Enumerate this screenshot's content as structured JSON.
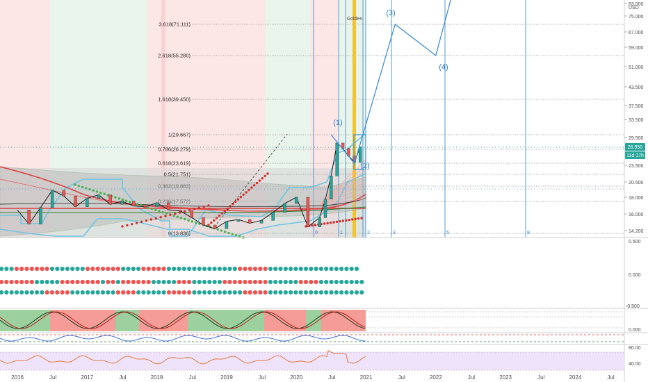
{
  "chart_data": {
    "type": "line",
    "series_name": "",
    "axis_unit": "USD",
    "current_price": {
      "value": 26.95,
      "label": "26.950",
      "countdown": "11d 17h",
      "color": "#26a69a"
    },
    "price_axis_ticks": [
      "83.000",
      "75.000",
      "67.000",
      "59.000",
      "51.000",
      "43.500",
      "37.500",
      "33.500",
      "29.500",
      "23.500",
      "20.500",
      "18.000",
      "16.000",
      "14.200"
    ],
    "x_ticks": [
      "2016",
      "Jul",
      "2017",
      "Jul",
      "2018",
      "Jul",
      "2019",
      "Jul",
      "2020",
      "Jul",
      "2021",
      "Jul",
      "2022",
      "Jul",
      "2023",
      "Jul",
      "2024",
      "Jul"
    ],
    "fib_levels": [
      {
        "ratio": "0",
        "label": "0(13.836)",
        "value": 13.836
      },
      {
        "ratio": "0.236",
        "label": "0.236(17.572)",
        "value": 17.572
      },
      {
        "ratio": "0.382",
        "label": "0.382(19.883)",
        "value": 19.883
      },
      {
        "ratio": "0.5",
        "label": "0.5(21.751)",
        "value": 21.751
      },
      {
        "ratio": "0.618",
        "label": "0.618(23.619)",
        "value": 23.619
      },
      {
        "ratio": "0.786",
        "label": "0.786(26.279)",
        "value": 26.279
      },
      {
        "ratio": "1",
        "label": "1(29.667)",
        "value": 29.667
      },
      {
        "ratio": "1.618",
        "label": "1.618(39.450)",
        "value": 39.45
      },
      {
        "ratio": "2.618",
        "label": "2.618(55.280)",
        "value": 55.28
      },
      {
        "ratio": "3.618",
        "label": "3.618(71.111)",
        "value": 71.111
      }
    ],
    "wave_labels": [
      "(1)",
      "(2)",
      "(3)",
      "(4)"
    ],
    "time_cycle_labels": [
      "0",
      "1",
      "2",
      "3",
      "5",
      "8"
    ],
    "golden_label": "Golden",
    "price_series": [
      [
        "2016-01",
        16.5
      ],
      [
        "2016-03",
        14.9
      ],
      [
        "2016-05",
        16.8
      ],
      [
        "2016-07",
        19.2
      ],
      [
        "2016-09",
        18.2
      ],
      [
        "2016-11",
        16.9
      ],
      [
        "2017-01",
        17.9
      ],
      [
        "2017-03",
        18.4
      ],
      [
        "2017-05",
        17.2
      ],
      [
        "2017-07",
        17.6
      ],
      [
        "2017-09",
        17.0
      ],
      [
        "2017-11",
        16.9
      ],
      [
        "2018-01",
        17.4
      ],
      [
        "2018-03",
        16.5
      ],
      [
        "2018-05",
        16.4
      ],
      [
        "2018-07",
        15.6
      ],
      [
        "2018-09",
        14.8
      ],
      [
        "2018-11",
        14.4
      ],
      [
        "2019-01",
        15.2
      ],
      [
        "2019-03",
        15.4
      ],
      [
        "2019-05",
        15.0
      ],
      [
        "2019-07",
        15.3
      ],
      [
        "2019-09",
        16.2
      ],
      [
        "2019-11",
        17.3
      ],
      [
        "2020-01",
        18.0
      ],
      [
        "2020-03",
        14.6
      ],
      [
        "2020-05",
        15.6
      ],
      [
        "2020-06",
        17.8
      ],
      [
        "2020-07",
        21.5
      ],
      [
        "2020-08",
        28.0
      ],
      [
        "2020-09",
        26.5
      ],
      [
        "2020-10",
        25.0
      ],
      [
        "2020-11",
        23.8
      ],
      [
        "2020-12",
        26.95
      ]
    ],
    "projection": [
      [
        "2020-07",
        29.667
      ],
      [
        "2020-11",
        23.6
      ],
      [
        "2021-06",
        71.1
      ],
      [
        "2022-01",
        55.3
      ],
      [
        "2022-04",
        92.0
      ]
    ],
    "oscillator_axis": [
      "0.500",
      "0.000",
      "-0.500"
    ],
    "stoch_axis": [
      "0.000"
    ],
    "rsi_axis": [
      "80.00",
      "40.00"
    ]
  },
  "colors": {
    "bull": "#26a69a",
    "bear": "#ef5350",
    "projection": "#3d8ed8",
    "golden": "#f4c430",
    "sar_bull": "#4caf50",
    "sar_bear": "#d32f2f"
  }
}
